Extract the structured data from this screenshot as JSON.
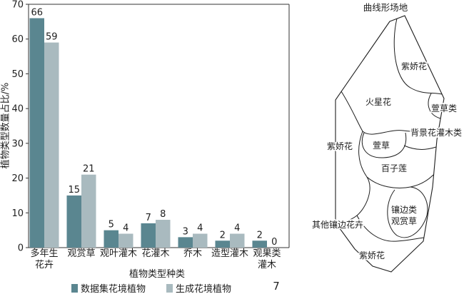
{
  "chart_data": {
    "type": "bar",
    "categories": [
      "多年生\n花卉",
      "观赏草",
      "观叶灌木",
      "花灌木",
      "乔木",
      "造型灌木",
      "观果类\n灌木"
    ],
    "series": [
      {
        "name": "数据集花境植物",
        "values": [
          66,
          15,
          5,
          7,
          3,
          2,
          2
        ],
        "color": "#5a8690"
      },
      {
        "name": "生成花境植物",
        "values": [
          59,
          21,
          4,
          8,
          4,
          4,
          0
        ],
        "color": "#a9babf"
      }
    ],
    "xlabel": "植物类型种类",
    "ylabel": "植物类型数量占比/%",
    "ylim": [
      0,
      70
    ],
    "yticks": [
      0,
      10,
      20,
      30,
      40,
      50,
      60,
      70
    ],
    "grid": false,
    "legend": "bottom"
  },
  "footer_mark": "7",
  "site_plan": {
    "title": "曲线形场地",
    "labels": [
      "紫娇花",
      "火星花",
      "萱草类",
      "背景花灌木类",
      "紫娇花",
      "萱草",
      "百子莲",
      "镶边类",
      "观赏草",
      "其他镶边花卉",
      "紫娇花"
    ]
  }
}
